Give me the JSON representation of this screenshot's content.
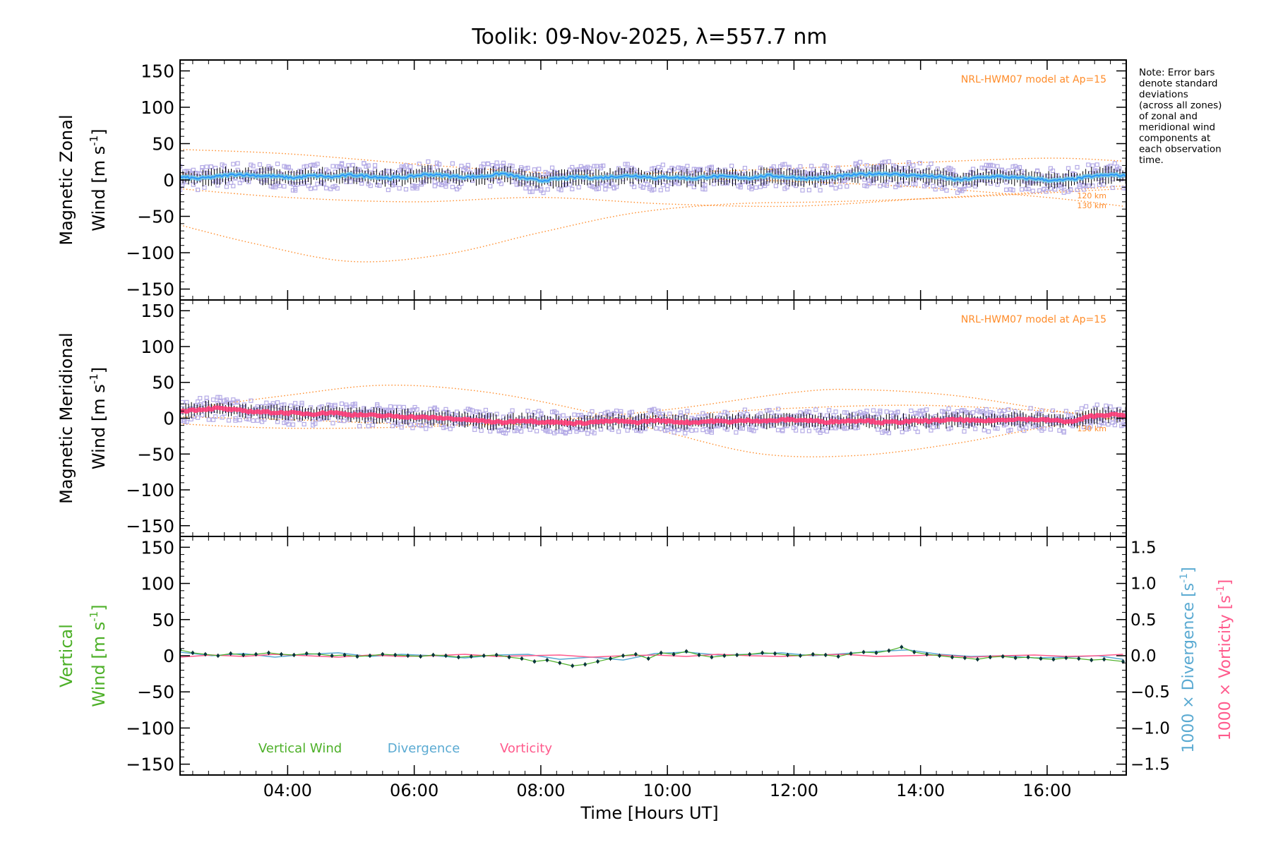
{
  "title": "Toolik: 09-Nov-2025, λ=557.7 nm",
  "note_lines": [
    "Note: Error bars",
    "denote standard",
    "deviations",
    "(across all zones)",
    "of zonal and",
    "meridional wind",
    "components at",
    "each observation",
    "time."
  ],
  "colors": {
    "axis": "#000000",
    "model": "#ff8c2a",
    "zonal": "#1e90ff",
    "zonal_band": "#6ec6e8",
    "meridional": "#ff3c78",
    "scatter": "#b4aae6",
    "vertical": "#4db028",
    "vertical_dark": "#06363c",
    "divergence": "#5aaad2",
    "vorticity": "#ff5a8c",
    "error_bar": "#000000"
  },
  "chart_data": [
    {
      "id": "zonal",
      "type": "line",
      "ylabel_line1": "Magnetic Zonal",
      "ylabel_line2": "Wind",
      "ylabel_units": "[m s",
      "ylabel_exp": "-1",
      "ylabel_close": "]",
      "ylim": [
        -165,
        165
      ],
      "yticks": [
        "150",
        "100",
        "50",
        "0",
        "−50",
        "−100",
        "−150"
      ],
      "ytick_values": [
        150,
        100,
        50,
        0,
        -50,
        -100,
        -150
      ],
      "model_label": "NRL-HWM07 model at Ap=15",
      "alt_labels": [
        "120 km",
        "130 km"
      ],
      "model_curves": [
        {
          "x": [
            2.3,
            3.5,
            5.0,
            6.5,
            8.0,
            9.5,
            11.0,
            12.5,
            14.0,
            15.5,
            17.2
          ],
          "y": [
            -62,
            -88,
            -112,
            -102,
            -72,
            -45,
            -33,
            -30,
            -26,
            -20,
            -12
          ]
        },
        {
          "x": [
            2.3,
            4.0,
            6.0,
            8.0,
            10.0,
            12.0,
            14.0,
            16.0,
            17.2
          ],
          "y": [
            -12,
            -24,
            -30,
            -24,
            -33,
            -36,
            -26,
            -16,
            -8
          ]
        },
        {
          "x": [
            2.3,
            4.0,
            6.0,
            8.0,
            10.0,
            12.0,
            14.0,
            16.0,
            17.2
          ],
          "y": [
            42,
            36,
            22,
            10,
            3,
            -2,
            -10,
            -24,
            -36
          ]
        },
        {
          "x": [
            2.3,
            4.0,
            6.0,
            8.0,
            10.0,
            12.0,
            14.0,
            16.0,
            17.2
          ],
          "y": [
            8,
            4,
            2,
            3,
            10,
            16,
            24,
            30,
            26
          ]
        }
      ],
      "series": {
        "x": [
          2.3,
          2.6,
          2.9,
          3.2,
          3.5,
          3.8,
          4.1,
          4.4,
          4.7,
          5.0,
          5.3,
          5.6,
          5.9,
          6.2,
          6.5,
          6.8,
          7.1,
          7.4,
          7.7,
          8.0,
          8.3,
          8.6,
          8.9,
          9.2,
          9.5,
          9.8,
          10.1,
          10.4,
          10.7,
          11.0,
          11.3,
          11.6,
          11.9,
          12.2,
          12.5,
          12.8,
          13.1,
          13.4,
          13.7,
          14.0,
          14.3,
          14.6,
          14.9,
          15.2,
          15.5,
          15.8,
          16.1,
          16.4,
          16.7,
          17.0,
          17.2
        ],
        "y": [
          4,
          2,
          5,
          8,
          6,
          5,
          3,
          6,
          4,
          7,
          5,
          3,
          4,
          8,
          6,
          4,
          5,
          9,
          3,
          -1,
          2,
          4,
          3,
          5,
          6,
          3,
          4,
          2,
          5,
          4,
          3,
          6,
          4,
          2,
          3,
          6,
          8,
          9,
          7,
          6,
          4,
          0,
          3,
          5,
          3,
          2,
          -1,
          1,
          5,
          7,
          6
        ]
      },
      "spread": 11
    },
    {
      "id": "meridional",
      "type": "line",
      "ylabel_line1": "Magnetic Meridional",
      "ylabel_line2": "Wind",
      "ylabel_units": "[m s",
      "ylabel_exp": "-1",
      "ylabel_close": "]",
      "ylim": [
        -165,
        165
      ],
      "yticks": [
        "150",
        "100",
        "50",
        "0",
        "−50",
        "−100",
        "−150"
      ],
      "ytick_values": [
        150,
        100,
        50,
        0,
        -50,
        -100,
        -150
      ],
      "model_label": "NRL-HWM07 model at Ap=15",
      "alt_labels": [
        "130 km"
      ],
      "model_curves": [
        {
          "x": [
            2.3,
            4.0,
            5.5,
            7.0,
            8.5,
            10.0,
            11.5,
            13.0,
            14.5,
            16.0,
            17.2
          ],
          "y": [
            12,
            32,
            46,
            38,
            14,
            -20,
            -50,
            -52,
            -36,
            -12,
            2
          ]
        },
        {
          "x": [
            2.3,
            4.0,
            6.0,
            8.0,
            10.0,
            12.0,
            13.0,
            14.5,
            16.0,
            17.2
          ],
          "y": [
            -8,
            -14,
            -12,
            -4,
            12,
            36,
            40,
            32,
            12,
            -4
          ]
        },
        {
          "x": [
            2.3,
            4.0,
            6.0,
            8.0,
            10.0,
            12.0,
            14.0,
            16.0,
            17.2
          ],
          "y": [
            2,
            -2,
            -8,
            -8,
            4,
            14,
            18,
            10,
            2
          ]
        }
      ],
      "series": {
        "x": [
          2.3,
          2.6,
          2.9,
          3.2,
          3.5,
          3.8,
          4.1,
          4.4,
          4.7,
          5.0,
          5.3,
          5.6,
          5.9,
          6.2,
          6.5,
          6.8,
          7.1,
          7.4,
          7.7,
          8.0,
          8.3,
          8.6,
          8.9,
          9.2,
          9.5,
          9.8,
          10.1,
          10.4,
          10.7,
          11.0,
          11.3,
          11.6,
          11.9,
          12.2,
          12.5,
          12.8,
          13.1,
          13.4,
          13.7,
          14.0,
          14.3,
          14.6,
          14.9,
          15.2,
          15.5,
          15.8,
          16.1,
          16.4,
          16.7,
          17.0,
          17.2
        ],
        "y": [
          10,
          12,
          14,
          11,
          9,
          8,
          7,
          6,
          8,
          5,
          4,
          3,
          2,
          1,
          0,
          -2,
          -4,
          -6,
          -3,
          -5,
          -6,
          -7,
          -5,
          -4,
          -6,
          -3,
          -5,
          -6,
          -4,
          -5,
          -3,
          -4,
          -2,
          -3,
          -5,
          -4,
          -3,
          -6,
          -5,
          -4,
          -3,
          -2,
          -4,
          -3,
          -1,
          -2,
          -3,
          -5,
          3,
          5,
          4
        ]
      },
      "spread": 10
    },
    {
      "id": "vertical",
      "type": "line",
      "ylabel_line1": "Vertical",
      "ylabel_line2": "Wind",
      "ylabel_units": "[m s",
      "ylabel_exp": "-1",
      "ylabel_close": "]",
      "ylim": [
        -165,
        165
      ],
      "yticks": [
        "150",
        "100",
        "50",
        "0",
        "−50",
        "−100",
        "−150"
      ],
      "ytick_values": [
        150,
        100,
        50,
        0,
        -50,
        -100,
        -150
      ],
      "right_ylim": [
        -1.65,
        1.65
      ],
      "right_yticks": [
        "1.5",
        "1.0",
        "0.5",
        "0.0",
        "−0.5",
        "−1.0",
        "−1.5"
      ],
      "right_ytick_values": [
        1.5,
        1.0,
        0.5,
        0.0,
        -0.5,
        -1.0,
        -1.5
      ],
      "right_label_div": "1000 × Divergence",
      "right_label_vor": "1000 × Vorticity",
      "right_units": "[s",
      "right_exp": "-1",
      "right_close": "]",
      "legend": [
        "Vertical Wind",
        "Divergence",
        "Vorticity"
      ],
      "series_vertical": {
        "x": [
          2.3,
          2.5,
          2.7,
          2.9,
          3.1,
          3.3,
          3.5,
          3.7,
          3.9,
          4.1,
          4.3,
          4.5,
          4.7,
          4.9,
          5.1,
          5.3,
          5.5,
          5.7,
          5.9,
          6.1,
          6.3,
          6.5,
          6.7,
          6.9,
          7.1,
          7.3,
          7.5,
          7.7,
          7.9,
          8.1,
          8.3,
          8.5,
          8.7,
          8.9,
          9.1,
          9.3,
          9.5,
          9.7,
          9.9,
          10.1,
          10.3,
          10.5,
          10.7,
          10.9,
          11.1,
          11.3,
          11.5,
          11.7,
          11.9,
          12.1,
          12.3,
          12.5,
          12.7,
          12.9,
          13.1,
          13.3,
          13.5,
          13.7,
          13.9,
          14.1,
          14.3,
          14.5,
          14.7,
          14.9,
          15.1,
          15.3,
          15.5,
          15.7,
          15.9,
          16.1,
          16.3,
          16.5,
          16.7,
          16.9,
          17.2
        ],
        "y": [
          8,
          4,
          2,
          0,
          3,
          1,
          2,
          4,
          2,
          1,
          3,
          2,
          0,
          1,
          -1,
          0,
          2,
          1,
          0,
          -1,
          1,
          0,
          -2,
          -1,
          0,
          1,
          -2,
          -4,
          -8,
          -6,
          -10,
          -14,
          -12,
          -8,
          -4,
          0,
          2,
          -4,
          4,
          2,
          6,
          1,
          -2,
          0,
          1,
          2,
          4,
          3,
          1,
          0,
          2,
          1,
          -1,
          3,
          5,
          4,
          7,
          12,
          5,
          2,
          0,
          -2,
          -3,
          -5,
          -2,
          -1,
          -3,
          -2,
          -4,
          -5,
          -3,
          -4,
          -6,
          -5,
          -8
        ]
      },
      "series_divergence": {
        "x": [
          2.3,
          2.8,
          3.3,
          3.8,
          4.3,
          4.8,
          5.3,
          5.8,
          6.3,
          6.8,
          7.3,
          7.8,
          8.3,
          8.8,
          9.3,
          9.8,
          10.3,
          10.8,
          11.3,
          11.8,
          12.3,
          12.8,
          13.3,
          13.8,
          14.3,
          14.8,
          15.3,
          15.8,
          16.3,
          16.8,
          17.2
        ],
        "y": [
          0.05,
          0.0,
          0.03,
          -0.02,
          0.02,
          0.04,
          -0.01,
          0.02,
          0.0,
          -0.03,
          0.01,
          0.02,
          -0.05,
          -0.02,
          -0.06,
          0.03,
          0.05,
          0.01,
          0.02,
          0.04,
          0.0,
          0.03,
          0.06,
          0.08,
          0.02,
          -0.01,
          0.0,
          -0.03,
          -0.02,
          0.0,
          -0.05
        ]
      },
      "series_vorticity": {
        "x": [
          2.3,
          2.8,
          3.3,
          3.8,
          4.3,
          4.8,
          5.3,
          5.8,
          6.3,
          6.8,
          7.3,
          7.8,
          8.3,
          8.8,
          9.3,
          9.8,
          10.3,
          10.8,
          11.3,
          11.8,
          12.3,
          12.8,
          13.3,
          13.8,
          14.3,
          14.8,
          15.3,
          15.8,
          16.3,
          16.8,
          17.2
        ],
        "y": [
          -0.02,
          0.01,
          -0.01,
          0.02,
          0.0,
          -0.02,
          0.01,
          -0.01,
          0.0,
          0.02,
          -0.01,
          0.0,
          0.01,
          -0.02,
          0.0,
          0.01,
          -0.01,
          0.02,
          0.0,
          -0.01,
          0.01,
          0.02,
          -0.01,
          0.0,
          0.01,
          -0.02,
          0.0,
          0.01,
          -0.01,
          0.0,
          0.02
        ]
      }
    }
  ],
  "x_axis": {
    "xlim": [
      2.3,
      17.25
    ],
    "xticks": [
      "04:00",
      "06:00",
      "08:00",
      "10:00",
      "12:00",
      "14:00",
      "16:00"
    ],
    "xtick_values": [
      4,
      6,
      8,
      10,
      12,
      14,
      16
    ],
    "xlabel": "Time [Hours UT]"
  }
}
